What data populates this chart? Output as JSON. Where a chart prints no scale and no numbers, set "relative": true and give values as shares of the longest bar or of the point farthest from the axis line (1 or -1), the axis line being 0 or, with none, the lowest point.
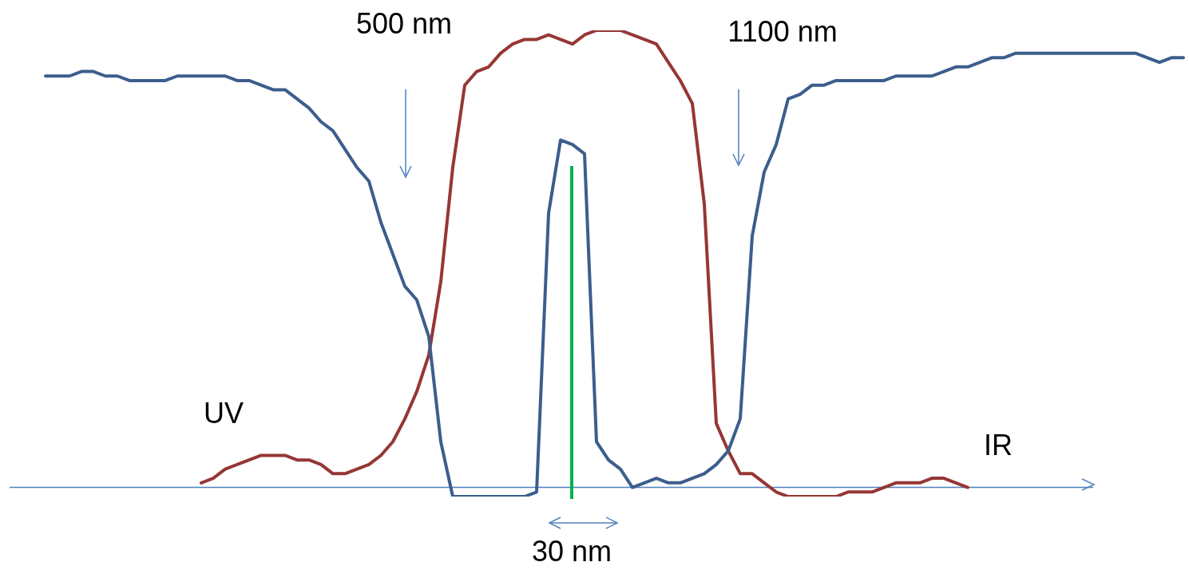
{
  "chart_data": {
    "type": "line",
    "relative": true,
    "marker": "none",
    "line_style": "solid",
    "legend": false,
    "ref_lines": [
      {
        "axis": "y",
        "value": 0,
        "color": "#4f81bd"
      }
    ],
    "categories": [
      null,
      null,
      null,
      null,
      null,
      null,
      null,
      null,
      null,
      null,
      null,
      null,
      null,
      null,
      null,
      null,
      null,
      null,
      null,
      null,
      null,
      null,
      null,
      null,
      null,
      null,
      null,
      null,
      null,
      null,
      null,
      null,
      null,
      null,
      null,
      null,
      null,
      null,
      null,
      null,
      null,
      null,
      null,
      null,
      null,
      null,
      null,
      null,
      null,
      null,
      null,
      null,
      null,
      null,
      null,
      null,
      null,
      null,
      null,
      null,
      null,
      null,
      null,
      null,
      null,
      null,
      null,
      null,
      null,
      null,
      null,
      null,
      null,
      null,
      null,
      null,
      null,
      null,
      null,
      null,
      null,
      null,
      null,
      null,
      null,
      null,
      null,
      null,
      null,
      null,
      null,
      null,
      null,
      null,
      null,
      null,
      null,
      null,
      null
    ],
    "series": [
      {
        "type": "line",
        "color": "#3b5e8c",
        "values": [
          null,
          null,
          null,
          0.9,
          0.9,
          0.9,
          0.91,
          0.91,
          0.9,
          0.9,
          0.89,
          0.89,
          0.89,
          0.89,
          0.9,
          0.9,
          0.9,
          0.9,
          0.9,
          0.89,
          0.89,
          0.88,
          0.87,
          0.87,
          0.85,
          0.83,
          0.8,
          0.78,
          0.74,
          0.7,
          0.67,
          0.58,
          0.51,
          0.44,
          0.41,
          0.33,
          0.1,
          -0.02,
          -0.02,
          -0.02,
          -0.02,
          -0.02,
          -0.02,
          -0.02,
          -0.01,
          0.6,
          0.76,
          0.75,
          0.73,
          0.1,
          0.06,
          0.04,
          0.0,
          0.01,
          0.02,
          0.01,
          0.01,
          0.02,
          0.03,
          0.05,
          0.08,
          0.15,
          0.55,
          0.69,
          0.75,
          0.85,
          0.86,
          0.88,
          0.88,
          0.89,
          0.89,
          0.89,
          0.89,
          0.89,
          0.9,
          0.9,
          0.9,
          0.9,
          0.91,
          0.92,
          0.92,
          0.93,
          0.94,
          0.94,
          0.95,
          0.95,
          0.95,
          0.95,
          0.95,
          0.95,
          0.95,
          0.95,
          0.95,
          0.95,
          0.95,
          0.94,
          0.93,
          0.94,
          0.94
        ]
      },
      {
        "type": "line",
        "color": "#953735",
        "values": [
          null,
          null,
          null,
          null,
          null,
          null,
          null,
          null,
          null,
          null,
          null,
          null,
          null,
          null,
          null,
          null,
          0.01,
          0.02,
          0.04,
          0.05,
          0.06,
          0.07,
          0.07,
          0.07,
          0.06,
          0.06,
          0.05,
          0.03,
          0.03,
          0.04,
          0.05,
          0.07,
          0.1,
          0.15,
          0.21,
          0.29,
          0.45,
          0.7,
          0.88,
          0.91,
          0.92,
          0.95,
          0.97,
          0.98,
          0.98,
          0.99,
          0.98,
          0.97,
          0.99,
          1,
          1,
          1,
          0.99,
          0.98,
          0.97,
          0.93,
          0.89,
          0.84,
          0.62,
          0.14,
          0.08,
          0.03,
          0.03,
          0.01,
          -0.01,
          -0.02,
          -0.02,
          -0.02,
          -0.02,
          -0.02,
          -0.01,
          -0.01,
          -0.01,
          0.0,
          0.01,
          0.01,
          0.01,
          0.02,
          0.02,
          0.01,
          0.0,
          null,
          null,
          null,
          null,
          null,
          null,
          null,
          null,
          null,
          null,
          null,
          null,
          null,
          null,
          null,
          null,
          null,
          null
        ]
      }
    ],
    "annotations": [
      "500 nm",
      "1100 nm",
      "UV",
      "IR",
      "30 nm"
    ]
  }
}
